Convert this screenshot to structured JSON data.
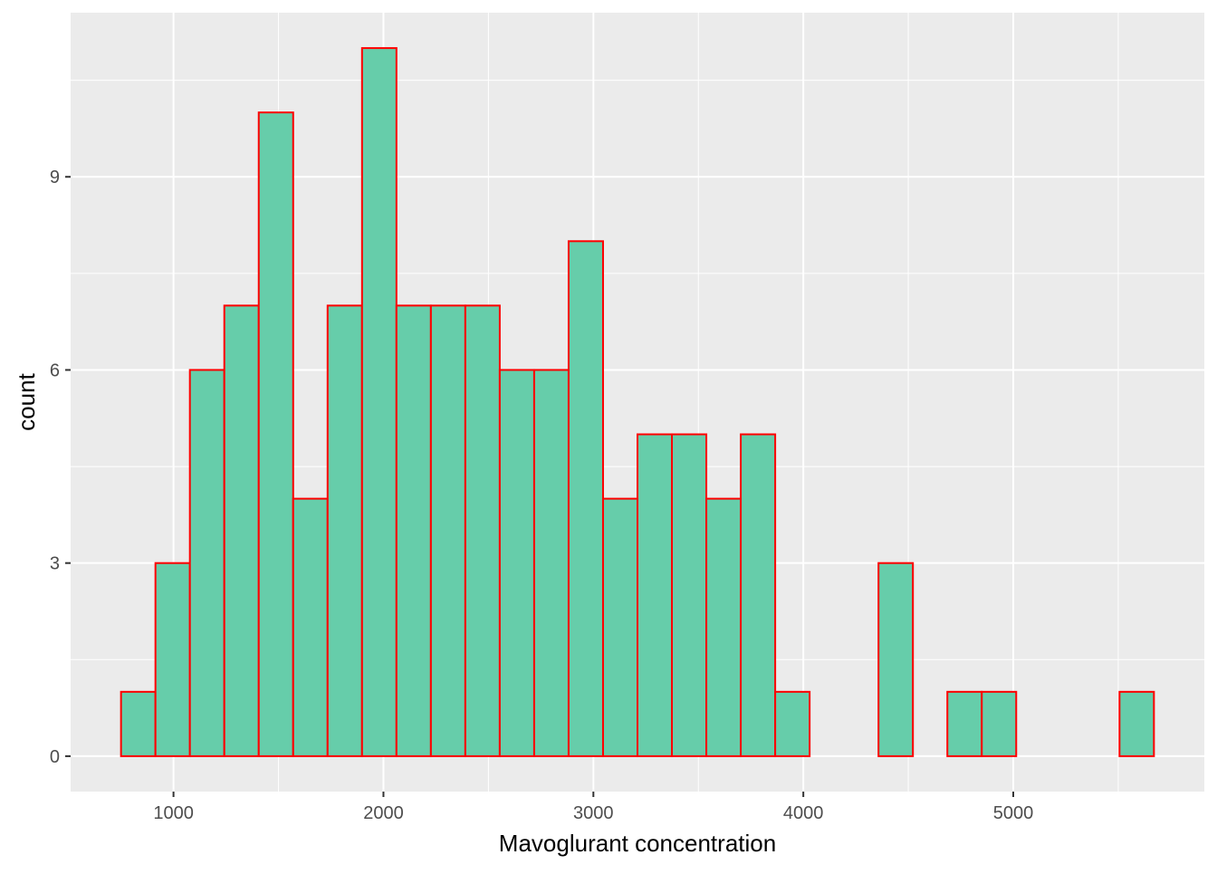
{
  "chart_data": {
    "type": "bar",
    "subtype": "histogram",
    "xlabel": "Mavoglurant concentration",
    "ylabel": "count",
    "x_ticks": [
      1000,
      2000,
      3000,
      4000,
      5000
    ],
    "y_ticks": [
      0,
      3,
      6,
      9
    ],
    "xlim": [
      510,
      5910
    ],
    "ylim": [
      -0.55,
      11.55
    ],
    "bin_width": 164,
    "bin_starts": [
      750,
      914,
      1078,
      1242,
      1406,
      1570,
      1734,
      1898,
      2062,
      2226,
      2390,
      2554,
      2718,
      2882,
      3046,
      3210,
      3374,
      3538,
      3702,
      3866,
      4030,
      4194,
      4358,
      4522,
      4686,
      4850,
      5014,
      5178,
      5342,
      5506
    ],
    "values": [
      1,
      3,
      6,
      7,
      10,
      4,
      7,
      11,
      7,
      7,
      7,
      6,
      6,
      8,
      4,
      5,
      5,
      4,
      5,
      1,
      0,
      0,
      3,
      0,
      1,
      1,
      0,
      0,
      0,
      1
    ],
    "grid": true,
    "colors": {
      "panel_background": "#ebebeb",
      "grid_line": "#ffffff",
      "bar_fill": "#66cdaa",
      "bar_outline": "#ff0000",
      "tick_text": "#4d4d4d",
      "axis_title": "#000000"
    }
  }
}
